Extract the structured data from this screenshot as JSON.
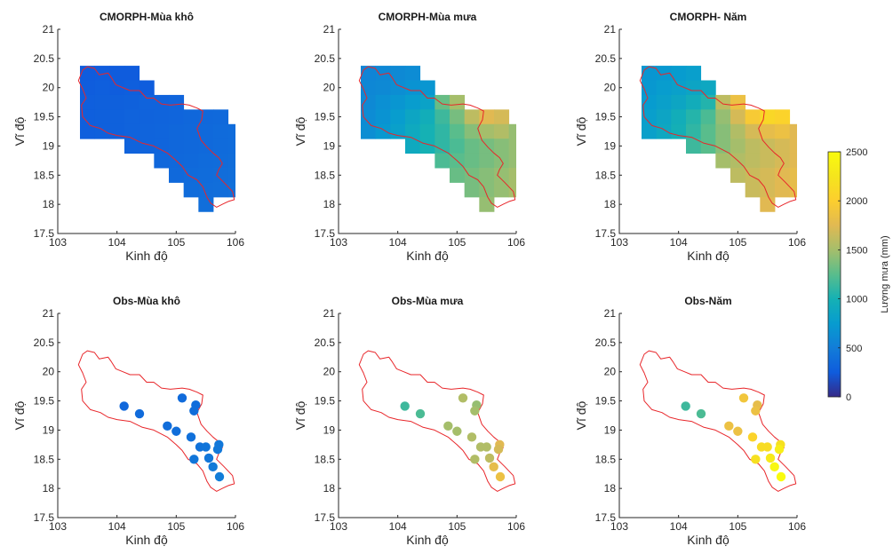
{
  "figure": {
    "colorbar": {
      "label": "Lượng mưa (mm)",
      "min": 0,
      "max": 2500,
      "ticks": [
        0,
        500,
        1000,
        1500,
        2000,
        2500
      ],
      "tick_labels": [
        "0",
        "500",
        "1000",
        "1500",
        "2000",
        "2500"
      ],
      "colormap": "parula"
    }
  },
  "chart_data": [
    {
      "type": "heatmap",
      "title": "CMORPH-Mùa khô",
      "xlabel": "Kinh độ",
      "ylabel": "Vĩ độ",
      "xlim": [
        103,
        106
      ],
      "ylim": [
        17.5,
        21
      ],
      "xticks": [
        "103",
        "104",
        "105",
        "106"
      ],
      "yticks": [
        "17.5",
        "18",
        "18.5",
        "19",
        "19.5",
        "20",
        "20.5",
        "21"
      ],
      "cell_lon_step": 0.25,
      "cell_lat_step": 0.25,
      "rows": [
        {
          "lat": 20.25,
          "lon_start": 103.5,
          "values": [
            250,
            260,
            250,
            250
          ]
        },
        {
          "lat": 20.0,
          "lon_start": 103.5,
          "values": [
            260,
            270,
            260,
            270,
            260
          ]
        },
        {
          "lat": 19.75,
          "lon_start": 103.5,
          "values": [
            270,
            280,
            280,
            290,
            300,
            300,
            320
          ]
        },
        {
          "lat": 19.5,
          "lon_start": 103.5,
          "values": [
            270,
            280,
            290,
            300,
            300,
            310,
            320,
            330,
            340,
            350
          ]
        },
        {
          "lat": 19.25,
          "lon_start": 103.5,
          "values": [
            270,
            280,
            290,
            300,
            310,
            320,
            330,
            340,
            350,
            360,
            370
          ]
        },
        {
          "lat": 19.0,
          "lon_start": 104.25,
          "values": [
            300,
            310,
            320,
            330,
            340,
            350,
            360,
            370
          ]
        },
        {
          "lat": 18.75,
          "lon_start": 104.75,
          "values": [
            330,
            340,
            350,
            360,
            370,
            380
          ]
        },
        {
          "lat": 18.5,
          "lon_start": 105.0,
          "values": [
            350,
            360,
            370,
            380,
            390
          ]
        },
        {
          "lat": 18.25,
          "lon_start": 105.25,
          "values": [
            370,
            380,
            390,
            400
          ]
        },
        {
          "lat": 18.0,
          "lon_start": 105.5,
          "values": [
            390
          ]
        }
      ]
    },
    {
      "type": "heatmap",
      "title": "CMORPH-Mùa mưa",
      "xlabel": "Kinh độ",
      "ylabel": "Vĩ độ",
      "xlim": [
        103,
        106
      ],
      "ylim": [
        17.5,
        21
      ],
      "xticks": [
        "103",
        "104",
        "105",
        "106"
      ],
      "yticks": [
        "17.5",
        "18",
        "18.5",
        "19",
        "19.5",
        "20",
        "20.5",
        "21"
      ],
      "cell_lon_step": 0.25,
      "cell_lat_step": 0.25,
      "rows": [
        {
          "lat": 20.25,
          "lon_start": 103.5,
          "values": [
            560,
            580,
            600,
            620
          ]
        },
        {
          "lat": 20.0,
          "lon_start": 103.5,
          "values": [
            580,
            600,
            640,
            680,
            700
          ]
        },
        {
          "lat": 19.75,
          "lon_start": 103.5,
          "values": [
            600,
            650,
            700,
            760,
            820,
            1300,
            1500
          ]
        },
        {
          "lat": 19.5,
          "lon_start": 103.5,
          "values": [
            620,
            680,
            760,
            860,
            950,
            1150,
            1350,
            1600,
            1750,
            1700
          ]
        },
        {
          "lat": 19.25,
          "lon_start": 103.5,
          "values": [
            640,
            720,
            800,
            900,
            1000,
            1100,
            1250,
            1400,
            1500,
            1550,
            1450
          ]
        },
        {
          "lat": 19.0,
          "lon_start": 104.25,
          "values": [
            900,
            1000,
            1100,
            1200,
            1300,
            1350,
            1400,
            1450
          ]
        },
        {
          "lat": 18.75,
          "lon_start": 104.75,
          "values": [
            1200,
            1250,
            1300,
            1350,
            1400,
            1450
          ]
        },
        {
          "lat": 18.5,
          "lon_start": 105.0,
          "values": [
            1300,
            1350,
            1400,
            1450,
            1500
          ]
        },
        {
          "lat": 18.25,
          "lon_start": 105.25,
          "values": [
            1350,
            1400,
            1450,
            1500
          ]
        },
        {
          "lat": 18.0,
          "lon_start": 105.5,
          "values": [
            1450
          ]
        }
      ]
    },
    {
      "type": "heatmap",
      "title": "CMORPH- Năm",
      "xlabel": "Kinh độ",
      "ylabel": "Vĩ độ",
      "xlim": [
        103,
        106
      ],
      "ylim": [
        17.5,
        21
      ],
      "xticks": [
        "103",
        "104",
        "105",
        "106"
      ],
      "yticks": [
        "17.5",
        "18",
        "18.5",
        "19",
        "19.5",
        "20",
        "20.5",
        "21"
      ],
      "cell_lon_step": 0.25,
      "cell_lat_step": 0.25,
      "rows": [
        {
          "lat": 20.25,
          "lon_start": 103.5,
          "values": [
            700,
            720,
            750,
            780
          ]
        },
        {
          "lat": 20.0,
          "lon_start": 103.5,
          "values": [
            720,
            760,
            800,
            850,
            880
          ]
        },
        {
          "lat": 19.75,
          "lon_start": 103.5,
          "values": [
            750,
            800,
            860,
            940,
            1050,
            1600,
            1850
          ]
        },
        {
          "lat": 19.5,
          "lon_start": 103.5,
          "values": [
            780,
            850,
            950,
            1060,
            1200,
            1450,
            1700,
            1950,
            2100,
            2050
          ]
        },
        {
          "lat": 19.25,
          "lon_start": 103.5,
          "values": [
            800,
            880,
            980,
            1100,
            1250,
            1400,
            1550,
            1700,
            1800,
            1850,
            1750
          ]
        },
        {
          "lat": 19.0,
          "lon_start": 104.25,
          "values": [
            1150,
            1250,
            1400,
            1500,
            1600,
            1650,
            1700,
            1750
          ]
        },
        {
          "lat": 18.75,
          "lon_start": 104.75,
          "values": [
            1500,
            1550,
            1600,
            1650,
            1700,
            1750
          ]
        },
        {
          "lat": 18.5,
          "lon_start": 105.0,
          "values": [
            1600,
            1650,
            1700,
            1750,
            1800
          ]
        },
        {
          "lat": 18.25,
          "lon_start": 105.25,
          "values": [
            1650,
            1700,
            1750,
            1800
          ]
        },
        {
          "lat": 18.0,
          "lon_start": 105.5,
          "values": [
            1750
          ]
        }
      ]
    },
    {
      "type": "scatter",
      "title": "Obs-Mùa khô",
      "xlabel": "Kinh độ",
      "ylabel": "Vĩ độ",
      "xlim": [
        103,
        106
      ],
      "ylim": [
        17.5,
        21
      ],
      "xticks": [
        "103",
        "104",
        "105",
        "106"
      ],
      "yticks": [
        "17.5",
        "18",
        "18.5",
        "19",
        "19.5",
        "20",
        "20.5",
        "21"
      ],
      "points": [
        {
          "lon": 104.12,
          "lat": 19.41,
          "value": 330
        },
        {
          "lon": 104.38,
          "lat": 19.28,
          "value": 360
        },
        {
          "lon": 104.85,
          "lat": 19.07,
          "value": 380
        },
        {
          "lon": 105.0,
          "lat": 18.98,
          "value": 390
        },
        {
          "lon": 105.1,
          "lat": 19.55,
          "value": 360
        },
        {
          "lon": 105.33,
          "lat": 19.43,
          "value": 370
        },
        {
          "lon": 105.25,
          "lat": 18.88,
          "value": 400
        },
        {
          "lon": 105.4,
          "lat": 18.71,
          "value": 420
        },
        {
          "lon": 105.5,
          "lat": 18.71,
          "value": 430
        },
        {
          "lon": 105.3,
          "lat": 18.5,
          "value": 440
        },
        {
          "lon": 105.55,
          "lat": 18.52,
          "value": 450
        },
        {
          "lon": 105.72,
          "lat": 18.75,
          "value": 460
        },
        {
          "lon": 105.7,
          "lat": 18.67,
          "value": 460
        },
        {
          "lon": 105.62,
          "lat": 18.37,
          "value": 480
        },
        {
          "lon": 105.73,
          "lat": 18.2,
          "value": 500
        },
        {
          "lon": 105.3,
          "lat": 19.33,
          "value": 380
        }
      ]
    },
    {
      "type": "scatter",
      "title": "Obs-Mùa mưa",
      "xlabel": "Kinh độ",
      "ylabel": "Vĩ độ",
      "xlim": [
        103,
        106
      ],
      "ylim": [
        17.5,
        21
      ],
      "xticks": [
        "103",
        "104",
        "105",
        "106"
      ],
      "yticks": [
        "17.5",
        "18",
        "18.5",
        "19",
        "19.5",
        "20",
        "20.5",
        "21"
      ],
      "points": [
        {
          "lon": 104.12,
          "lat": 19.41,
          "value": 1150
        },
        {
          "lon": 104.38,
          "lat": 19.28,
          "value": 1200
        },
        {
          "lon": 104.85,
          "lat": 19.07,
          "value": 1500
        },
        {
          "lon": 105.0,
          "lat": 18.98,
          "value": 1500
        },
        {
          "lon": 105.1,
          "lat": 19.55,
          "value": 1550
        },
        {
          "lon": 105.33,
          "lat": 19.43,
          "value": 1450
        },
        {
          "lon": 105.25,
          "lat": 18.88,
          "value": 1550
        },
        {
          "lon": 105.4,
          "lat": 18.71,
          "value": 1550
        },
        {
          "lon": 105.5,
          "lat": 18.71,
          "value": 1550
        },
        {
          "lon": 105.3,
          "lat": 18.5,
          "value": 1550
        },
        {
          "lon": 105.55,
          "lat": 18.52,
          "value": 1600
        },
        {
          "lon": 105.72,
          "lat": 18.75,
          "value": 1750
        },
        {
          "lon": 105.7,
          "lat": 18.67,
          "value": 1700
        },
        {
          "lon": 105.62,
          "lat": 18.37,
          "value": 1800
        },
        {
          "lon": 105.73,
          "lat": 18.2,
          "value": 1850
        },
        {
          "lon": 105.3,
          "lat": 19.33,
          "value": 1500
        }
      ]
    },
    {
      "type": "scatter",
      "title": "Obs-Năm",
      "xlabel": "Kinh độ",
      "ylabel": "Vĩ độ",
      "xlim": [
        103,
        106
      ],
      "ylim": [
        17.5,
        21
      ],
      "xticks": [
        "103",
        "104",
        "105",
        "106"
      ],
      "yticks": [
        "17.5",
        "18",
        "18.5",
        "19",
        "19.5",
        "20",
        "20.5",
        "21"
      ],
      "points": [
        {
          "lon": 104.12,
          "lat": 19.41,
          "value": 1150
        },
        {
          "lon": 104.38,
          "lat": 19.28,
          "value": 1200
        },
        {
          "lon": 104.85,
          "lat": 19.07,
          "value": 1850
        },
        {
          "lon": 105.0,
          "lat": 18.98,
          "value": 1850
        },
        {
          "lon": 105.1,
          "lat": 19.55,
          "value": 1900
        },
        {
          "lon": 105.33,
          "lat": 19.43,
          "value": 1800
        },
        {
          "lon": 105.25,
          "lat": 18.88,
          "value": 2050
        },
        {
          "lon": 105.4,
          "lat": 18.71,
          "value": 2150
        },
        {
          "lon": 105.5,
          "lat": 18.71,
          "value": 2150
        },
        {
          "lon": 105.3,
          "lat": 18.5,
          "value": 2200
        },
        {
          "lon": 105.55,
          "lat": 18.52,
          "value": 2300
        },
        {
          "lon": 105.72,
          "lat": 18.75,
          "value": 2200
        },
        {
          "lon": 105.7,
          "lat": 18.67,
          "value": 2350
        },
        {
          "lon": 105.62,
          "lat": 18.37,
          "value": 2450
        },
        {
          "lon": 105.73,
          "lat": 18.2,
          "value": 2500
        },
        {
          "lon": 105.3,
          "lat": 19.33,
          "value": 1850
        }
      ]
    }
  ]
}
